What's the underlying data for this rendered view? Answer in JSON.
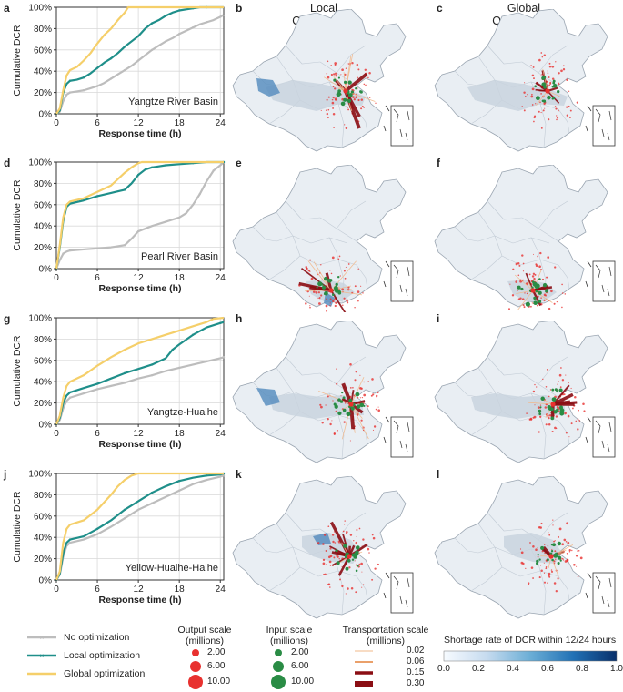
{
  "panel_letters": [
    "a",
    "b",
    "c",
    "d",
    "e",
    "f",
    "g",
    "h",
    "i",
    "j",
    "k",
    "l"
  ],
  "column_titles": {
    "local": "Local\nOptimization",
    "global": "Global\nOptimization"
  },
  "colors": {
    "none": "#bdbdbd",
    "local": "#1f8f8a",
    "global": "#f5cf6a",
    "output": "#e8312f",
    "input": "#2a8c45",
    "transport_dark": "#8b0e14",
    "transport_light": "#f2b88a",
    "map_fill": "#e9eef3",
    "shortage_hi": "#08306b",
    "shortage_lo": "#f7fbff"
  },
  "chart_data": [
    {
      "type": "line",
      "panel": "a",
      "annotation": "Yangtze River Basin",
      "xlabel": "Response time (h)",
      "ylabel": "Cumulative DCR",
      "xlim": [
        0,
        24.5
      ],
      "ylim": [
        0,
        100
      ],
      "xticks": [
        0,
        6,
        12,
        18,
        24
      ],
      "yticks": [
        "0%",
        "20%",
        "40%",
        "60%",
        "80%",
        "100%"
      ],
      "grid": true,
      "series": [
        {
          "name": "No optimization",
          "x": [
            0,
            0.5,
            1,
            1.5,
            2,
            3,
            4,
            5,
            6,
            7,
            8,
            9,
            10,
            11,
            12,
            13,
            14,
            15,
            16,
            17,
            18,
            19,
            20,
            21,
            22,
            23,
            24,
            24.5
          ],
          "y": [
            0,
            2,
            12,
            18,
            20,
            21,
            22,
            24,
            26,
            29,
            33,
            37,
            41,
            45,
            50,
            55,
            60,
            64,
            68,
            71,
            75,
            78,
            81,
            84,
            86,
            88,
            91,
            93
          ]
        },
        {
          "name": "Local optimization",
          "x": [
            0,
            0.5,
            1,
            1.5,
            2,
            3,
            4,
            5,
            6,
            7,
            8,
            9,
            10,
            11,
            12,
            13,
            14,
            15,
            16,
            17,
            18,
            19,
            20,
            21,
            22,
            24.5
          ],
          "y": [
            0,
            3,
            20,
            28,
            31,
            32,
            34,
            38,
            43,
            48,
            52,
            57,
            63,
            68,
            73,
            80,
            85,
            88,
            92,
            95,
            97,
            98,
            99,
            100,
            100,
            100
          ]
        },
        {
          "name": "Global optimization",
          "x": [
            0,
            0.5,
            1,
            1.5,
            2,
            3,
            4,
            5,
            6,
            7,
            8,
            9,
            10,
            10.5,
            11,
            24.5
          ],
          "y": [
            0,
            5,
            22,
            36,
            41,
            44,
            50,
            57,
            66,
            74,
            80,
            88,
            95,
            100,
            100,
            100
          ]
        }
      ]
    },
    {
      "type": "line",
      "panel": "d",
      "annotation": "Pearl River Basin",
      "xlabel": "Response time (h)",
      "ylabel": "Cumulative DCR",
      "xlim": [
        0,
        24.5
      ],
      "ylim": [
        0,
        100
      ],
      "xticks": [
        0,
        6,
        12,
        18,
        24
      ],
      "yticks": [
        "0%",
        "20%",
        "40%",
        "60%",
        "80%",
        "100%"
      ],
      "grid": true,
      "series": [
        {
          "name": "No optimization",
          "x": [
            0,
            0.5,
            1,
            1.5,
            2,
            4,
            6,
            8,
            10,
            11,
            12,
            14,
            16,
            18,
            19,
            20,
            21,
            22,
            23,
            24,
            24.5
          ],
          "y": [
            0,
            8,
            14,
            16,
            17,
            18,
            19,
            20,
            22,
            28,
            35,
            40,
            44,
            48,
            52,
            60,
            70,
            82,
            92,
            97,
            100
          ]
        },
        {
          "name": "Local optimization",
          "x": [
            0,
            0.5,
            1,
            1.5,
            2,
            4,
            6,
            8,
            10,
            11,
            12,
            13,
            14,
            15,
            16,
            18,
            20,
            22,
            24.5
          ],
          "y": [
            0,
            20,
            45,
            58,
            61,
            64,
            68,
            71,
            74,
            80,
            88,
            93,
            95,
            96,
            97,
            98,
            99,
            100,
            100
          ]
        },
        {
          "name": "Global optimization",
          "x": [
            0,
            0.5,
            1,
            1.5,
            2,
            4,
            6,
            8,
            9,
            10,
            11,
            12,
            12.5,
            24.5
          ],
          "y": [
            0,
            22,
            48,
            60,
            63,
            66,
            72,
            78,
            84,
            90,
            95,
            99,
            100,
            100
          ]
        }
      ]
    },
    {
      "type": "line",
      "panel": "g",
      "annotation": "Yangtze-Huaihe",
      "xlabel": "Response time (h)",
      "ylabel": "Cumulative DCR",
      "xlim": [
        0,
        24.5
      ],
      "ylim": [
        0,
        100
      ],
      "xticks": [
        0,
        6,
        12,
        18,
        24
      ],
      "yticks": [
        "0%",
        "20%",
        "40%",
        "60%",
        "80%",
        "100%"
      ],
      "grid": true,
      "series": [
        {
          "name": "No optimization",
          "x": [
            0,
            0.5,
            1,
            1.5,
            2,
            4,
            6,
            8,
            10,
            12,
            14,
            16,
            18,
            20,
            22,
            24,
            24.5
          ],
          "y": [
            0,
            4,
            15,
            22,
            25,
            29,
            33,
            36,
            39,
            43,
            46,
            50,
            53,
            56,
            59,
            62,
            63
          ]
        },
        {
          "name": "Local optimization",
          "x": [
            0,
            0.5,
            1,
            1.5,
            2,
            4,
            6,
            8,
            10,
            12,
            14,
            16,
            17,
            18,
            20,
            22,
            24,
            24.5
          ],
          "y": [
            0,
            6,
            20,
            27,
            30,
            34,
            38,
            43,
            48,
            52,
            56,
            62,
            70,
            75,
            84,
            91,
            95,
            96
          ]
        },
        {
          "name": "Global optimization",
          "x": [
            0,
            0.5,
            1,
            1.5,
            2,
            4,
            6,
            8,
            10,
            12,
            14,
            16,
            18,
            20,
            22,
            23,
            24.5
          ],
          "y": [
            0,
            8,
            25,
            36,
            40,
            46,
            55,
            63,
            70,
            76,
            80,
            84,
            88,
            92,
            96,
            99,
            100
          ]
        }
      ]
    },
    {
      "type": "line",
      "panel": "j",
      "annotation": "Yellow-Huaihe-Haihe",
      "xlabel": "Response time (h)",
      "ylabel": "Cumulative DCR",
      "xlim": [
        0,
        24.5
      ],
      "ylim": [
        0,
        100
      ],
      "xticks": [
        0,
        6,
        12,
        18,
        24
      ],
      "yticks": [
        "0%",
        "20%",
        "40%",
        "60%",
        "80%",
        "100%"
      ],
      "grid": true,
      "series": [
        {
          "name": "No optimization",
          "x": [
            0,
            0.5,
            1,
            1.5,
            2,
            4,
            6,
            8,
            10,
            12,
            14,
            16,
            18,
            20,
            22,
            24,
            24.5
          ],
          "y": [
            0,
            5,
            22,
            32,
            35,
            38,
            43,
            50,
            58,
            66,
            72,
            78,
            84,
            90,
            94,
            97,
            98
          ]
        },
        {
          "name": "Local optimization",
          "x": [
            0,
            0.5,
            1,
            1.5,
            2,
            4,
            6,
            8,
            10,
            12,
            14,
            16,
            18,
            20,
            22,
            24,
            24.5
          ],
          "y": [
            0,
            6,
            25,
            35,
            38,
            41,
            48,
            56,
            66,
            74,
            82,
            88,
            93,
            96,
            98,
            99,
            100
          ]
        },
        {
          "name": "Global optimization",
          "x": [
            0,
            0.5,
            1,
            1.5,
            2,
            4,
            6,
            8,
            9,
            10,
            11,
            12,
            24.5
          ],
          "y": [
            0,
            8,
            35,
            48,
            52,
            56,
            66,
            80,
            88,
            94,
            98,
            100,
            100
          ]
        }
      ]
    }
  ],
  "legend": {
    "series": [
      "No optimization",
      "Local optimization",
      "Global optimization"
    ],
    "output_title": "Output scale\n(millions)",
    "output_values": [
      "2.00",
      "6.00",
      "10.00"
    ],
    "input_title": "Input scale\n(millions)",
    "input_values": [
      "2.00",
      "6.00",
      "10.00"
    ],
    "transport_title": "Transportation scale\n(millions)",
    "transport_values": [
      "0.02",
      "0.06",
      "0.15",
      "0.30"
    ],
    "colorbar_title": "Shortage rate of DCR within 12/24 hours",
    "colorbar_ticks": [
      "0.0",
      "0.2",
      "0.4",
      "0.6",
      "0.8",
      "1.0"
    ]
  }
}
